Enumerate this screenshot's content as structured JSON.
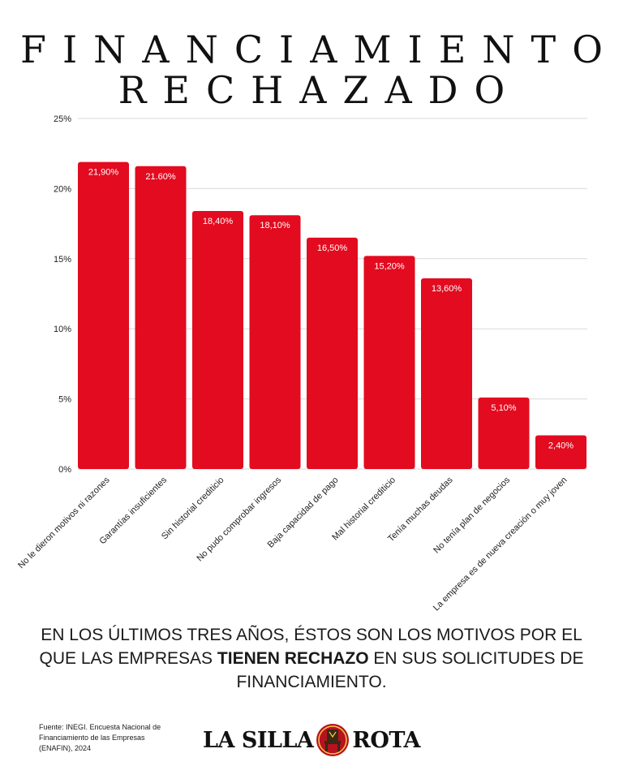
{
  "title_lines": [
    "FINANCIAMIENTO",
    "RECHAZADO"
  ],
  "chart_data": {
    "type": "bar",
    "categories": [
      "No le dieron motivos ni razones",
      "Garantías insuficientes",
      "Sin historial crediticio",
      "No pudo comprobar ingresos",
      "Baja capacidad de pago",
      "Mal historial crediticio",
      "Tenía muchas deudas",
      "No tenía plan de negocios",
      "La empresa es de nueva creación o muy joven"
    ],
    "values": [
      21.9,
      21.6,
      18.4,
      18.1,
      16.5,
      15.2,
      13.6,
      5.1,
      2.4
    ],
    "data_labels": [
      "21,90%",
      "21.60%",
      "18,40%",
      "18,10%",
      "16,50%",
      "15,20%",
      "13,60%",
      "5,10%",
      "2,40%"
    ],
    "ylim": [
      0,
      25
    ],
    "yticks": [
      0,
      5,
      10,
      15,
      20,
      25
    ],
    "ytick_labels": [
      "0%",
      "5%",
      "10%",
      "15%",
      "20%",
      "25%"
    ],
    "grid": true,
    "bar_color": "#e30b1f",
    "title": "",
    "xlabel": "",
    "ylabel": ""
  },
  "caption": {
    "part1": "EN LOS ÚLTIMOS TRES AÑOS, ÉSTOS SON LOS MOTIVOS POR EL QUE LAS EMPRESAS ",
    "bold": "TIENEN RECHAZO",
    "part2": " EN SUS SOLICITUDES DE FINANCIAMIENTO."
  },
  "source_text": "Fuente: INEGI. Encuesta Nacional de Financiamiento de las Empresas (ENAFIN), 2024",
  "logo": {
    "left_text": "LA SILLA",
    "right_text": "ROTA",
    "emblem_icon": "chair-emblem-icon"
  }
}
